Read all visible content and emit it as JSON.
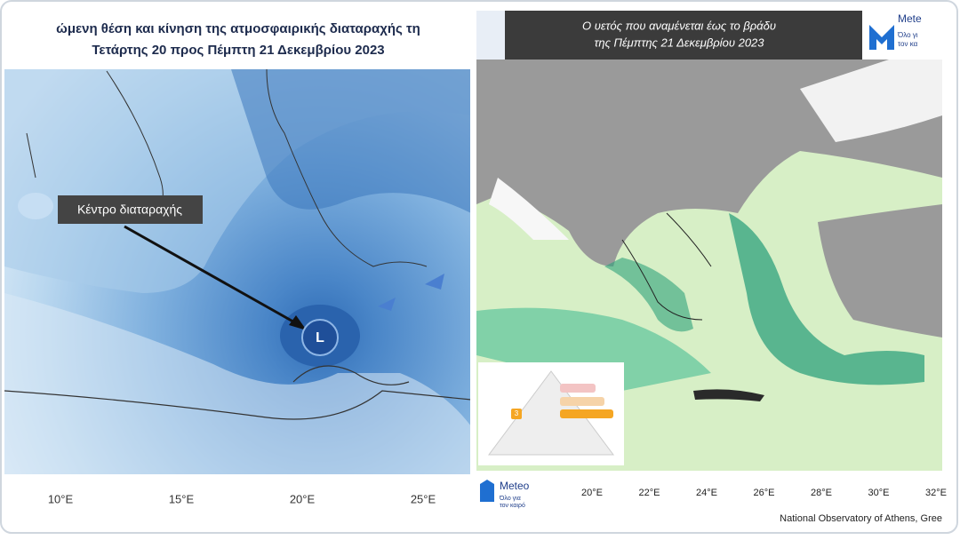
{
  "left_map": {
    "title_lines": [
      "ώμενη θέση και κίνηση της ατμοσφαιρικής διαταραχής τη",
      "Τετάρτης 20 προς Πέμπτη 21 Δεκεμβρίου 2023"
    ],
    "callout": "Κέντρο διαταραχής",
    "center_marker": "L",
    "lon_labels": [
      "10°E",
      "15°E",
      "20°E",
      "25°E"
    ]
  },
  "right_map": {
    "title_lines": [
      "Ο υετός που αναμένεται έως το βράδυ",
      "της Πέμπτης 21 Δεκεμβρίου 2023"
    ],
    "header_logo": {
      "name": "Mete",
      "tagline": [
        "Όλο γι",
        "τον κα"
      ]
    },
    "legend_level": "3",
    "footer_logo": {
      "name": "Meteo",
      "tagline": [
        "Όλο για",
        "τον καιρό"
      ]
    },
    "lon_labels": [
      "20°E",
      "22°E",
      "24°E",
      "26°E",
      "28°E",
      "30°E",
      "32°E"
    ],
    "credit": "National Observatory of Athens, Gree"
  }
}
